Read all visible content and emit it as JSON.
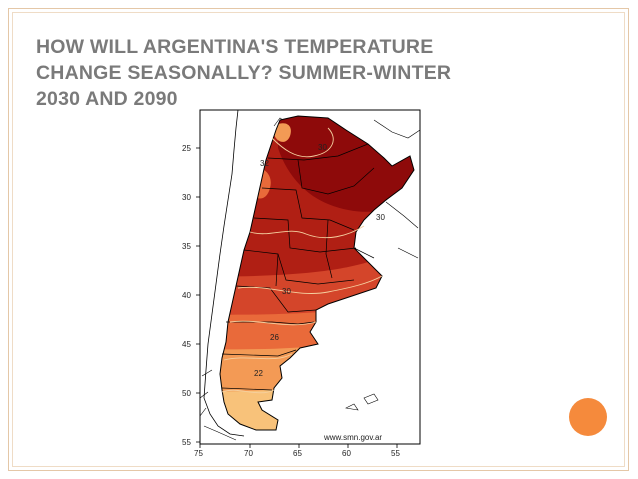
{
  "slide": {
    "title_lines": [
      "HOW WILL ARGENTINA'S TEMPERATURE",
      "CHANGE SEASONALLY? SUMMER-WINTER",
      "2030 AND 2090"
    ]
  },
  "map": {
    "y_axis_labels": [
      "25",
      "30",
      "35",
      "40",
      "45",
      "50",
      "55"
    ],
    "x_axis_labels": [
      "75",
      "70",
      "65",
      "60",
      "55"
    ],
    "contour_labels": [
      "30",
      "32",
      "30",
      "30",
      "26",
      "22"
    ],
    "watermark": "www.smn.gov.ar",
    "colors": {
      "hottest": "#8e0a0a",
      "hot": "#b01f14",
      "warm": "#d4452a",
      "mild": "#e96a3a",
      "cool": "#f39a55",
      "coolest": "#f8c27a"
    }
  }
}
